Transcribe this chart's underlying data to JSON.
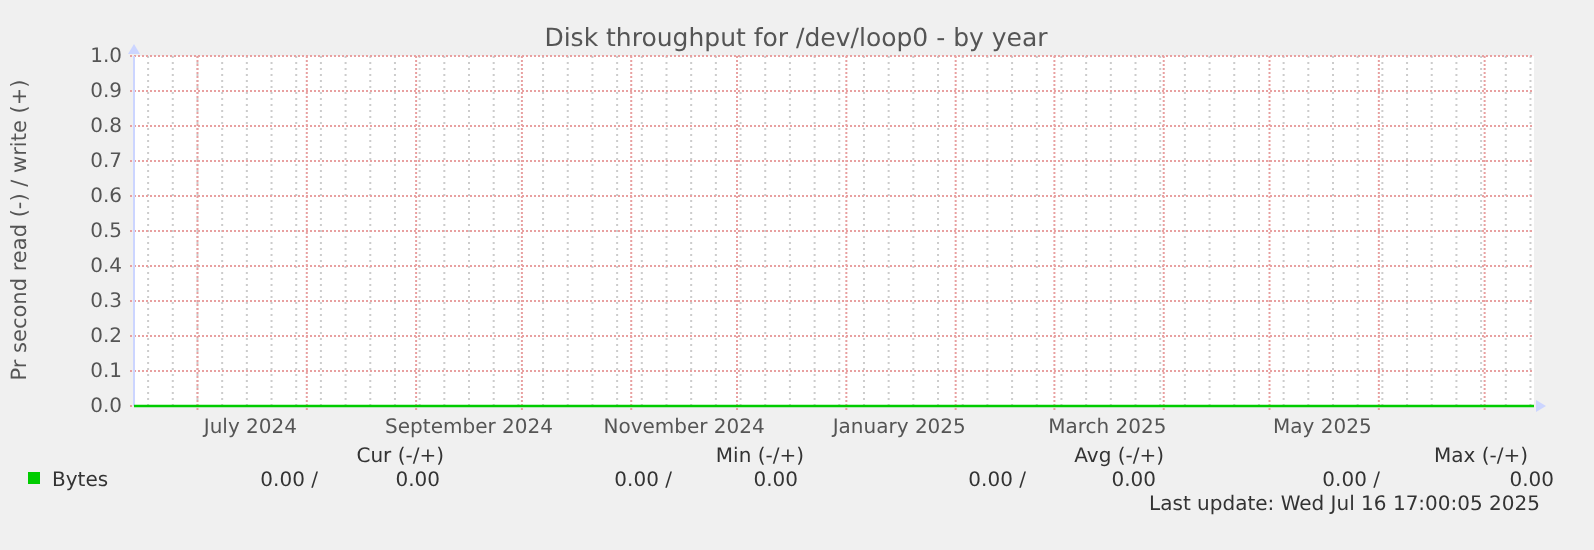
{
  "chart_data": {
    "type": "line",
    "title": "Disk throughput for /dev/loop0 - by year",
    "ylabel": "Pr second read (-) / write (+)",
    "xlim": [
      "2024-06-13",
      "2025-07-15"
    ],
    "xticks": [
      {
        "value": "2024-07-01",
        "label": null
      },
      {
        "value": "2024-07-16",
        "label": "July 2024"
      },
      {
        "value": "2024-08-01",
        "label": null
      },
      {
        "value": "2024-09-01",
        "label": null
      },
      {
        "value": "2024-09-16",
        "label": "September 2024"
      },
      {
        "value": "2024-10-01",
        "label": null
      },
      {
        "value": "2024-11-01",
        "label": null
      },
      {
        "value": "2024-11-16",
        "label": "November 2024"
      },
      {
        "value": "2024-12-01",
        "label": null
      },
      {
        "value": "2025-01-01",
        "label": null
      },
      {
        "value": "2025-01-16",
        "label": "January 2025"
      },
      {
        "value": "2025-02-01",
        "label": null
      },
      {
        "value": "2025-03-01",
        "label": null
      },
      {
        "value": "2025-03-16",
        "label": "March 2025"
      },
      {
        "value": "2025-04-01",
        "label": null
      },
      {
        "value": "2025-05-01",
        "label": null
      },
      {
        "value": "2025-05-16",
        "label": "May 2025"
      },
      {
        "value": "2025-06-01",
        "label": null
      },
      {
        "value": "2025-07-01",
        "label": null
      }
    ],
    "ylim": [
      0,
      1
    ],
    "yticks": [
      {
        "value": 0,
        "label": "0.0"
      },
      {
        "value": 0.1,
        "label": "0.1"
      },
      {
        "value": 0.2,
        "label": "0.2"
      },
      {
        "value": 0.3,
        "label": "0.3"
      },
      {
        "value": 0.4,
        "label": "0.4"
      },
      {
        "value": 0.5,
        "label": "0.5"
      },
      {
        "value": 0.6,
        "label": "0.6"
      },
      {
        "value": 0.7,
        "label": "0.7"
      },
      {
        "value": 0.8,
        "label": "0.8"
      },
      {
        "value": 0.9,
        "label": "0.9"
      },
      {
        "value": 1,
        "label": "1.0"
      }
    ],
    "grid": true,
    "legend": "bottom left",
    "series": [
      {
        "name": "Bytes",
        "color": "#00cc00",
        "x": [
          "2024-06-13",
          "2025-07-15"
        ],
        "values": [
          0,
          0
        ]
      }
    ],
    "annotations": [
      "Cur (-/+)",
      "Min (-/+)",
      "Avg (-/+)",
      "Max (-/+)",
      "0.00 /",
      "0.00",
      "0.00 /",
      "0.00",
      "0.00 /",
      "0.00",
      "0.00 /",
      "0.00",
      "Last update: Wed Jul 16 17:00:05 2025"
    ]
  }
}
